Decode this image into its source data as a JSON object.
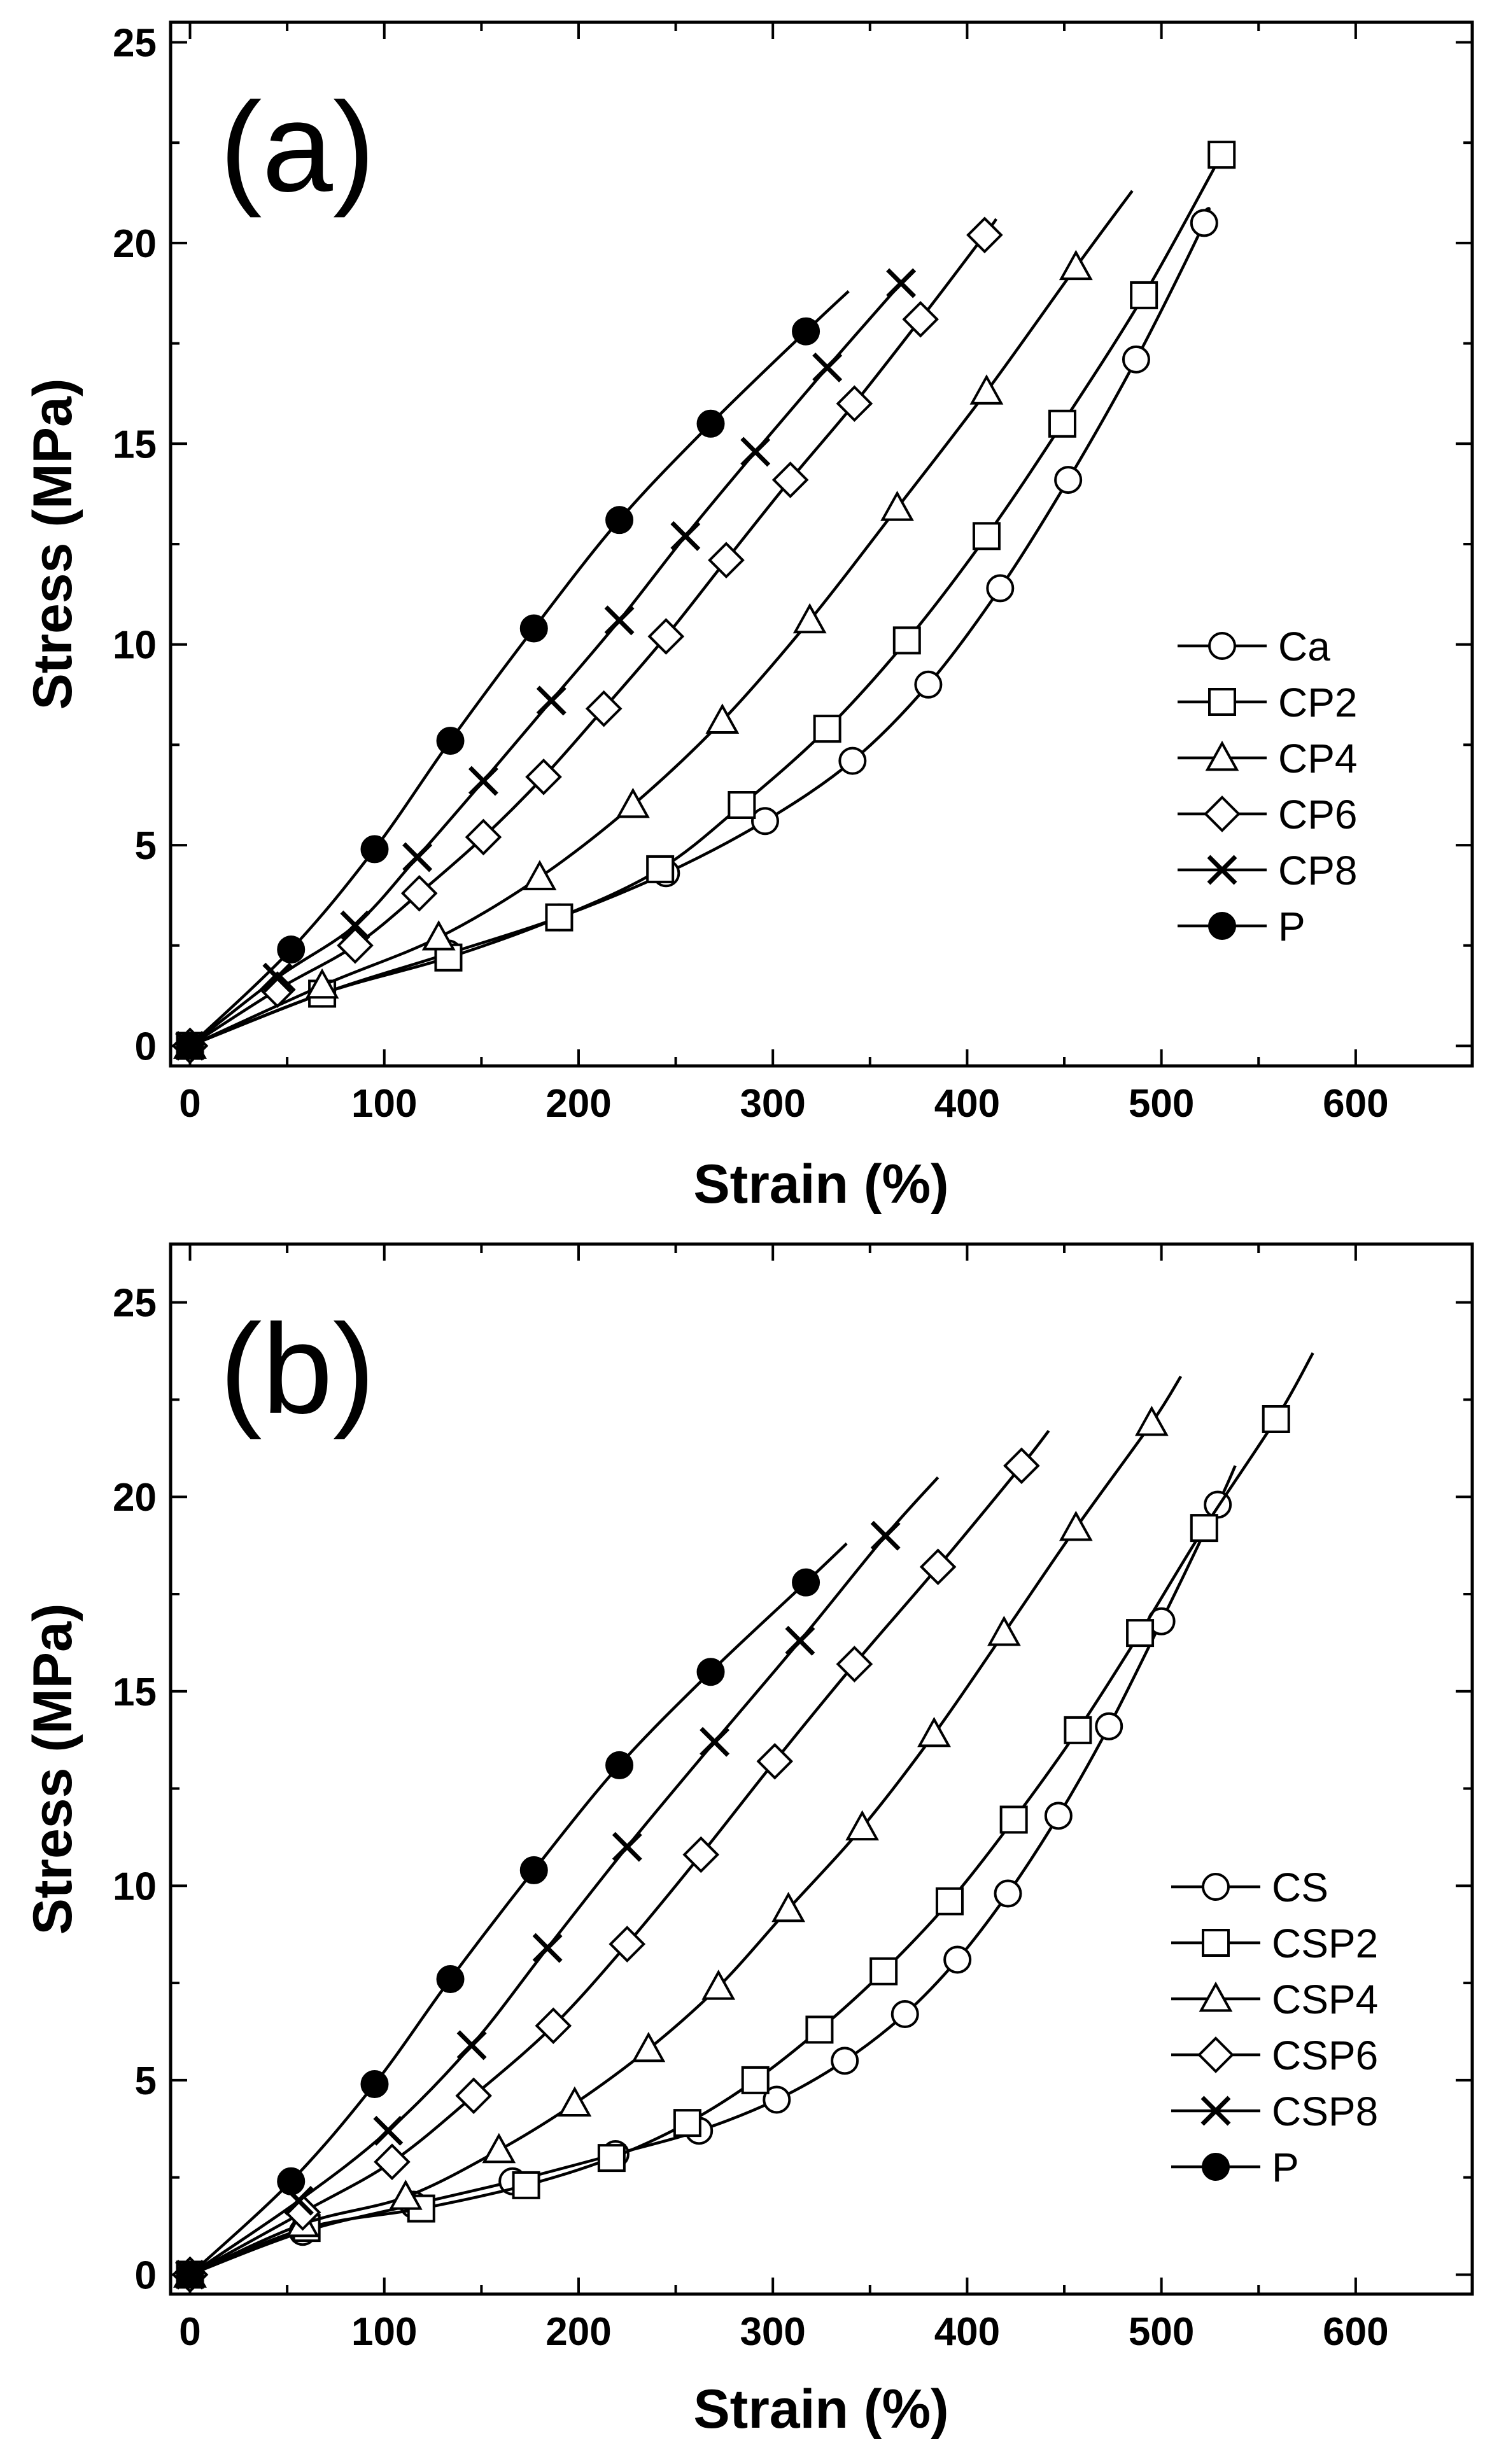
{
  "figure": {
    "colors": {
      "ink": "#000000",
      "background": "#ffffff"
    }
  },
  "chart_data": [
    {
      "type": "line",
      "panel_label": "(a)",
      "xlabel": "Strain (%)",
      "ylabel": "Stress (MPa)",
      "xlim": [
        -10,
        660
      ],
      "ylim": [
        -0.5,
        25.5
      ],
      "xticks": [
        0,
        100,
        200,
        300,
        400,
        500,
        600
      ],
      "yticks": [
        0,
        5,
        10,
        15,
        20,
        25
      ],
      "grid": false,
      "legend_position": "center-right",
      "series": [
        {
          "name": "Ca",
          "marker": "circle",
          "line_end": [
            522,
            20.8
          ],
          "points": [
            [
              0,
              0
            ],
            [
              68,
              1.3
            ],
            [
              133,
              2.3
            ],
            [
              190,
              3.2
            ],
            [
              245,
              4.3
            ],
            [
              296,
              5.6
            ],
            [
              341,
              7.1
            ],
            [
              380,
              9.0
            ],
            [
              417,
              11.4
            ],
            [
              452,
              14.1
            ],
            [
              487,
              17.1
            ],
            [
              522,
              20.5
            ]
          ]
        },
        {
          "name": "CP2",
          "marker": "square",
          "line_end": [
            533,
            22.3
          ],
          "points": [
            [
              0,
              0
            ],
            [
              68,
              1.3
            ],
            [
              133,
              2.2
            ],
            [
              190,
              3.2
            ],
            [
              242,
              4.4
            ],
            [
              284,
              6.0
            ],
            [
              328,
              7.9
            ],
            [
              369,
              10.1
            ],
            [
              410,
              12.7
            ],
            [
              449,
              15.5
            ],
            [
              491,
              18.7
            ],
            [
              531,
              22.2
            ]
          ]
        },
        {
          "name": "CP4",
          "marker": "triangle",
          "line_end": [
            485,
            21.3
          ],
          "points": [
            [
              0,
              0
            ],
            [
              68,
              1.5
            ],
            [
              128,
              2.7
            ],
            [
              180,
              4.2
            ],
            [
              228,
              6.0
            ],
            [
              274,
              8.1
            ],
            [
              319,
              10.6
            ],
            [
              364,
              13.4
            ],
            [
              410,
              16.3
            ],
            [
              456,
              19.4
            ]
          ]
        },
        {
          "name": "CP6",
          "marker": "diamond",
          "line_end": [
            415,
            20.6
          ],
          "points": [
            [
              0,
              0
            ],
            [
              45,
              1.4
            ],
            [
              85,
              2.5
            ],
            [
              118,
              3.8
            ],
            [
              151,
              5.2
            ],
            [
              182,
              6.7
            ],
            [
              213,
              8.4
            ],
            [
              245,
              10.2
            ],
            [
              276,
              12.1
            ],
            [
              309,
              14.1
            ],
            [
              342,
              16.0
            ],
            [
              376,
              18.1
            ],
            [
              409,
              20.2
            ]
          ]
        },
        {
          "name": "CP8",
          "marker": "x",
          "line_end": [
            370,
            19.2
          ],
          "points": [
            [
              0,
              0
            ],
            [
              45,
              1.7
            ],
            [
              85,
              3.0
            ],
            [
              117,
              4.7
            ],
            [
              151,
              6.6
            ],
            [
              186,
              8.6
            ],
            [
              221,
              10.6
            ],
            [
              255,
              12.7
            ],
            [
              291,
              14.8
            ],
            [
              328,
              16.9
            ],
            [
              366,
              19.0
            ]
          ]
        },
        {
          "name": "P",
          "marker": "filled-circle",
          "line_end": [
            339,
            18.8
          ],
          "points": [
            [
              0,
              0
            ],
            [
              52,
              2.4
            ],
            [
              95,
              4.9
            ],
            [
              134,
              7.6
            ],
            [
              177,
              10.4
            ],
            [
              221,
              13.1
            ],
            [
              268,
              15.5
            ],
            [
              317,
              17.8
            ]
          ]
        }
      ]
    },
    {
      "type": "line",
      "panel_label": "(b)",
      "xlabel": "Strain (%)",
      "ylabel": "Stress (MPa)",
      "xlim": [
        -10,
        660
      ],
      "ylim": [
        -0.5,
        26.5
      ],
      "xticks": [
        0,
        100,
        200,
        300,
        400,
        500,
        600
      ],
      "yticks": [
        0,
        5,
        10,
        15,
        20,
        25
      ],
      "grid": false,
      "legend_position": "center-right",
      "series": [
        {
          "name": "CS",
          "marker": "circle",
          "line_end": [
            538,
            20.8
          ],
          "points": [
            [
              0,
              0
            ],
            [
              58,
              1.1
            ],
            [
              115,
              1.8
            ],
            [
              166,
              2.4
            ],
            [
              219,
              3.1
            ],
            [
              262,
              3.7
            ],
            [
              302,
              4.5
            ],
            [
              337,
              5.5
            ],
            [
              368,
              6.7
            ],
            [
              395,
              8.1
            ],
            [
              421,
              9.8
            ],
            [
              447,
              11.8
            ],
            [
              473,
              14.1
            ],
            [
              500,
              16.8
            ],
            [
              529,
              19.8
            ]
          ]
        },
        {
          "name": "CSP2",
          "marker": "square",
          "line_end": [
            578,
            23.7
          ],
          "points": [
            [
              0,
              0
            ],
            [
              60,
              1.2
            ],
            [
              119,
              1.7
            ],
            [
              173,
              2.3
            ],
            [
              217,
              3.0
            ],
            [
              256,
              3.9
            ],
            [
              291,
              5.0
            ],
            [
              324,
              6.3
            ],
            [
              357,
              7.8
            ],
            [
              391,
              9.6
            ],
            [
              424,
              11.7
            ],
            [
              457,
              14.0
            ],
            [
              489,
              16.5
            ],
            [
              522,
              19.2
            ],
            [
              559,
              22.0
            ]
          ]
        },
        {
          "name": "CSP4",
          "marker": "triangle",
          "line_end": [
            510,
            23.1
          ],
          "points": [
            [
              0,
              0
            ],
            [
              58,
              1.3
            ],
            [
              111,
              2.0
            ],
            [
              159,
              3.2
            ],
            [
              198,
              4.4
            ],
            [
              236,
              5.8
            ],
            [
              272,
              7.4
            ],
            [
              308,
              9.4
            ],
            [
              346,
              11.5
            ],
            [
              383,
              13.9
            ],
            [
              419,
              16.5
            ],
            [
              456,
              19.2
            ],
            [
              495,
              21.9
            ]
          ]
        },
        {
          "name": "CSP6",
          "marker": "diamond",
          "line_end": [
            442,
            21.7
          ],
          "points": [
            [
              0,
              0
            ],
            [
              58,
              1.6
            ],
            [
              104,
              2.9
            ],
            [
              146,
              4.6
            ],
            [
              187,
              6.4
            ],
            [
              225,
              8.5
            ],
            [
              263,
              10.8
            ],
            [
              301,
              13.2
            ],
            [
              342,
              15.7
            ],
            [
              385,
              18.2
            ],
            [
              428,
              20.8
            ]
          ]
        },
        {
          "name": "CSP8",
          "marker": "x",
          "line_end": [
            385,
            20.5
          ],
          "points": [
            [
              0,
              0
            ],
            [
              56,
              1.9
            ],
            [
              102,
              3.7
            ],
            [
              145,
              5.9
            ],
            [
              184,
              8.4
            ],
            [
              225,
              11.0
            ],
            [
              270,
              13.7
            ],
            [
              314,
              16.3
            ],
            [
              358,
              19.0
            ]
          ]
        },
        {
          "name": "P",
          "marker": "filled-circle",
          "line_end": [
            338,
            18.8
          ],
          "points": [
            [
              0,
              0
            ],
            [
              52,
              2.4
            ],
            [
              95,
              4.9
            ],
            [
              134,
              7.6
            ],
            [
              177,
              10.4
            ],
            [
              221,
              13.1
            ],
            [
              268,
              15.5
            ],
            [
              317,
              17.8
            ]
          ]
        }
      ]
    }
  ]
}
